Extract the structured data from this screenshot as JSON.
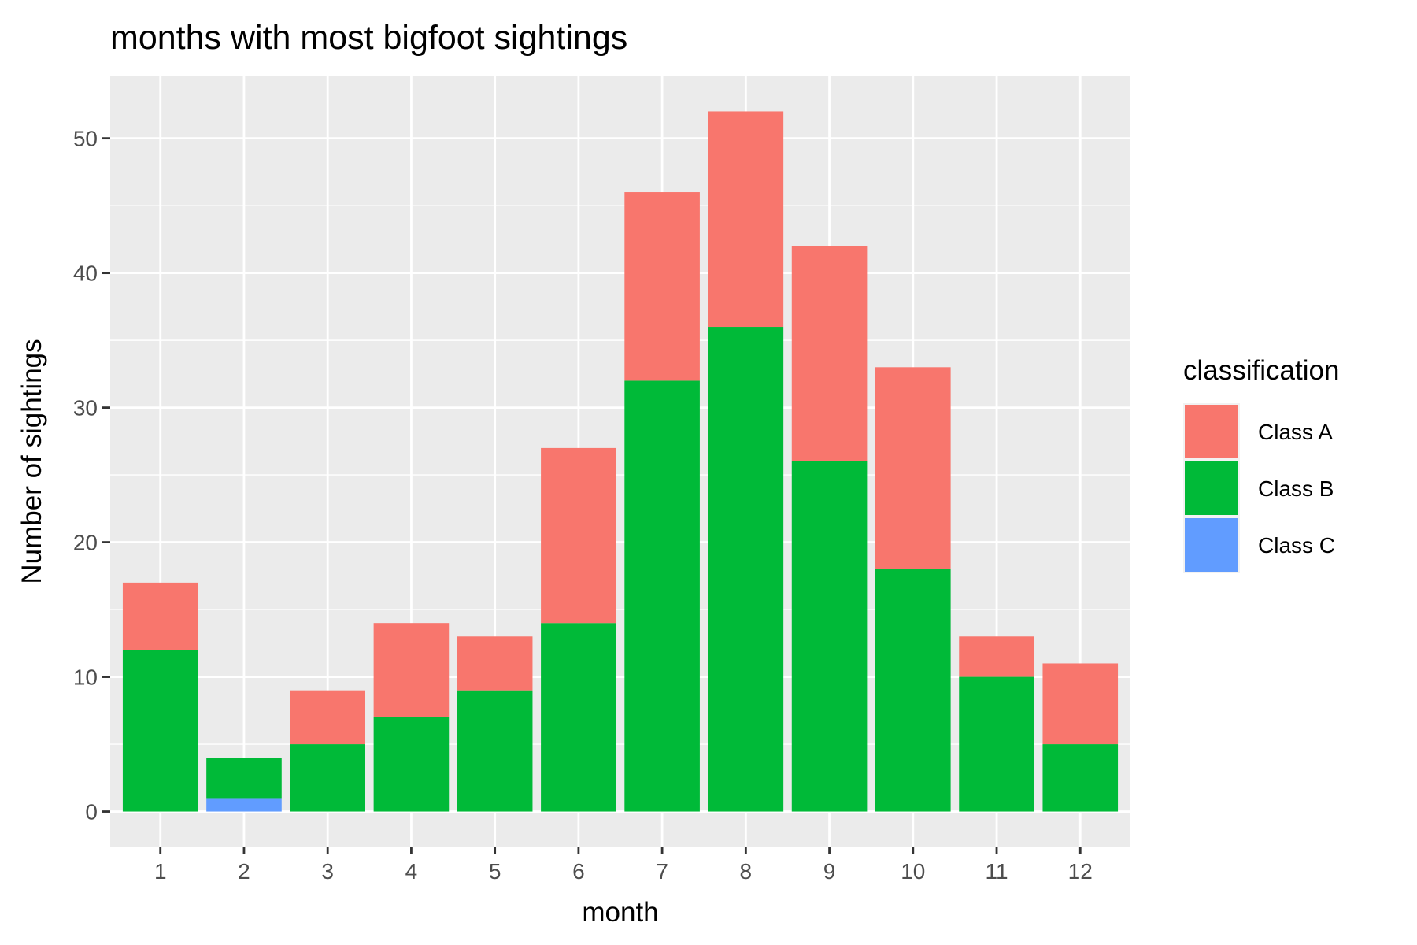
{
  "chart_data": {
    "type": "bar",
    "stacked": true,
    "title": "months with most bigfoot sightings",
    "xlabel": "month",
    "ylabel": "Number of sightings",
    "categories": [
      "1",
      "2",
      "3",
      "4",
      "5",
      "6",
      "7",
      "8",
      "9",
      "10",
      "11",
      "12"
    ],
    "ylim": [
      -2.6,
      54.6
    ],
    "yticks": [
      0,
      10,
      20,
      30,
      40,
      50
    ],
    "grid": true,
    "legend": {
      "title": "classification",
      "position": "right",
      "entries": [
        "Class A",
        "Class B",
        "Class C"
      ]
    },
    "series": [
      {
        "name": "Class C",
        "color": "#619CFF",
        "values": [
          0,
          1,
          0,
          0,
          0,
          0,
          0,
          0,
          0,
          0,
          0,
          0
        ]
      },
      {
        "name": "Class B",
        "color": "#00BA38",
        "values": [
          12,
          3,
          5,
          7,
          9,
          14,
          32,
          36,
          26,
          18,
          10,
          5
        ]
      },
      {
        "name": "Class A",
        "color": "#F8766D",
        "values": [
          5,
          0,
          4,
          7,
          4,
          13,
          14,
          16,
          16,
          15,
          3,
          6
        ]
      }
    ]
  }
}
